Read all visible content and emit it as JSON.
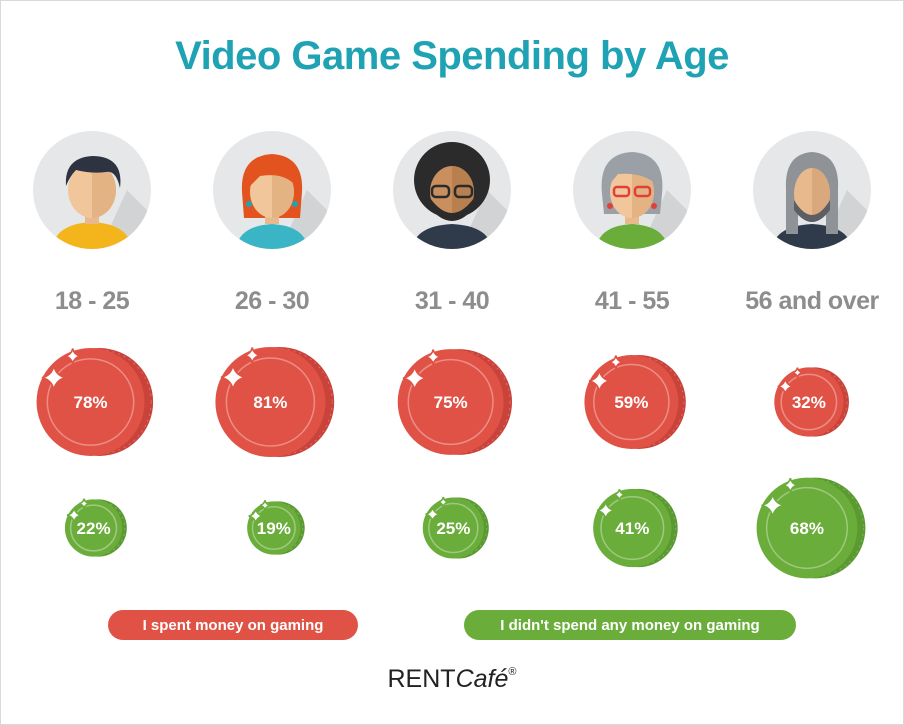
{
  "title": "Video Game Spending by Age",
  "chart_data": {
    "type": "bubble",
    "title": "Video Game Spending by Age",
    "categories": [
      "18 - 25",
      "26 - 30",
      "31 - 40",
      "41 - 55",
      "56 and over"
    ],
    "series": [
      {
        "name": "I spent money on gaming",
        "color": "#e05246",
        "values": [
          78,
          81,
          75,
          59,
          32
        ],
        "labels": [
          "78%",
          "81%",
          "75%",
          "59%",
          "32%"
        ]
      },
      {
        "name": "I didn't spend any money on gaming",
        "color": "#6aad3a",
        "values": [
          22,
          19,
          25,
          41,
          68
        ],
        "labels": [
          "22%",
          "19%",
          "25%",
          "41%",
          "68%"
        ]
      }
    ],
    "unit": "%"
  },
  "legend": {
    "spent": "I spent money on gaming",
    "not_spent": "I didn't spend any money on gaming"
  },
  "colors": {
    "title": "#1fa3b4",
    "spent": "#e05246",
    "not_spent": "#6aad3a",
    "label_gray": "#8d8d8d"
  },
  "avatars": [
    "young-man-icon",
    "red-haired-woman-icon",
    "bearded-man-glasses-icon",
    "gray-haired-woman-icon",
    "older-bearded-man-icon"
  ],
  "brand": {
    "name": "RENT",
    "accent": "Café",
    "mark": "®"
  }
}
